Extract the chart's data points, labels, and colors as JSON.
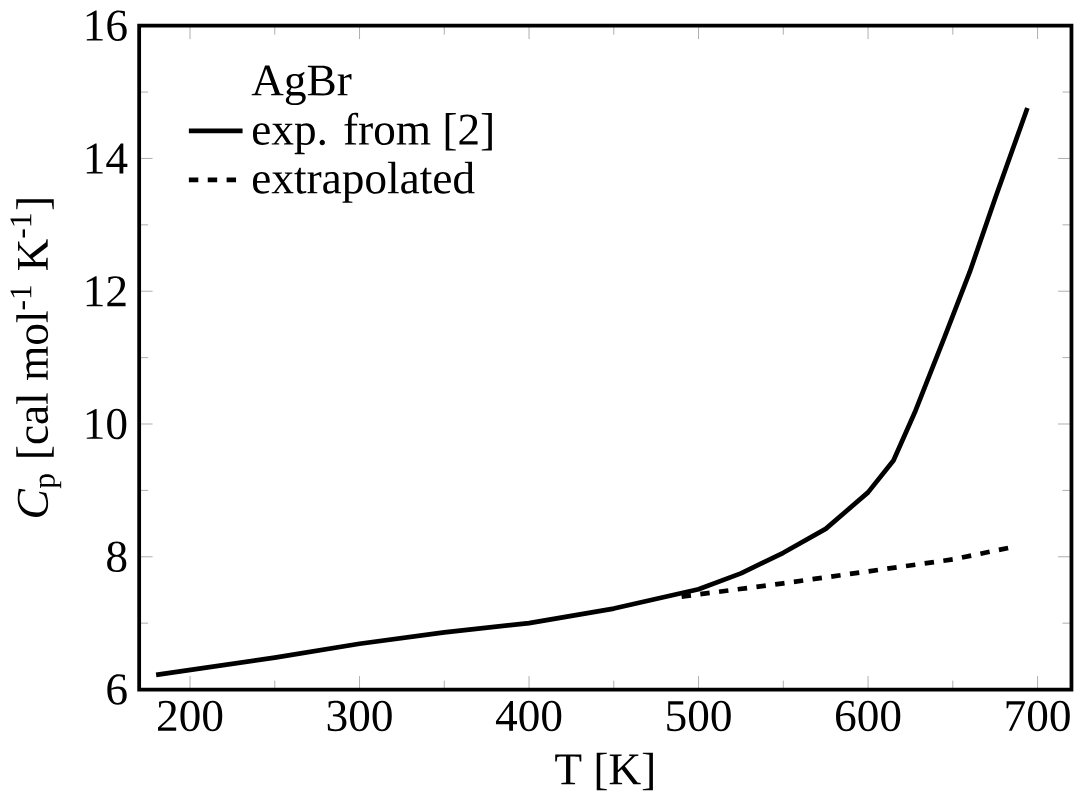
{
  "chart_data": {
    "type": "line",
    "xlabel": "T [K]",
    "ylabel": "*C*$_{p}$ [cal mol$^{-1}$ K$^{-1}$]",
    "legend_title": "AgBr",
    "legend": "top left",
    "xlim": [
      170,
      720
    ],
    "ylim": [
      6,
      16
    ],
    "xticks": [
      200,
      300,
      400,
      500,
      600,
      700
    ],
    "yticks": [
      6,
      8,
      10,
      12,
      14,
      16
    ],
    "series": [
      {
        "name": "exp. from [2]",
        "color": "#000000",
        "line_style": "solid",
        "x": [
          180,
          250,
          300,
          350,
          400,
          450,
          500,
          525,
          550,
          575,
          600,
          615,
          628,
          645,
          660,
          675,
          694
        ],
        "values": [
          6.22,
          6.48,
          6.69,
          6.86,
          7.0,
          7.22,
          7.51,
          7.75,
          8.06,
          8.42,
          8.97,
          9.45,
          10.2,
          11.3,
          12.29,
          13.4,
          14.76
        ]
      },
      {
        "name": "extrapolated",
        "color": "#000000",
        "line_style": "dashed",
        "x": [
          490,
          550,
          600,
          650,
          686
        ],
        "values": [
          7.4,
          7.6,
          7.78,
          7.96,
          8.15
        ]
      }
    ]
  }
}
